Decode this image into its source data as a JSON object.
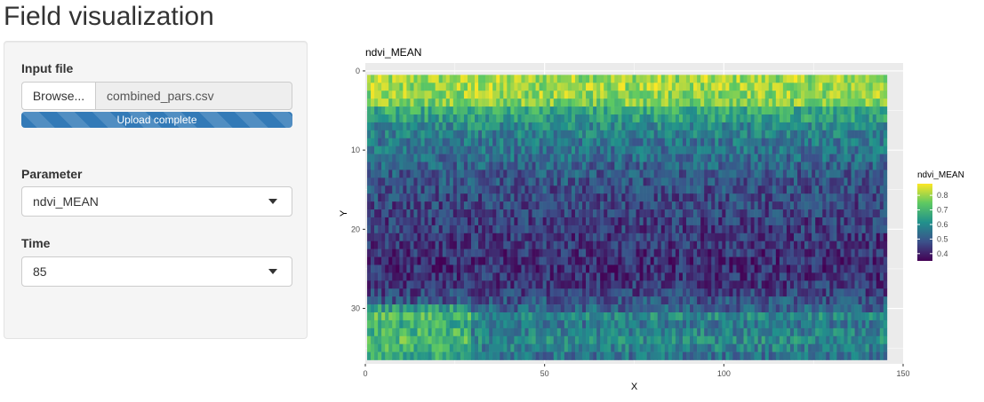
{
  "page": {
    "title": "Field visualization"
  },
  "sidebar": {
    "input_file": {
      "label": "Input file",
      "browse_label": "Browse...",
      "file_name": "combined_pars.csv",
      "progress_text": "Upload complete",
      "progress": 1.0
    },
    "parameter": {
      "label": "Parameter",
      "selected": "ndvi_MEAN"
    },
    "time": {
      "label": "Time",
      "selected": "85"
    }
  },
  "colors": {
    "progress_bar": "#337ab7",
    "panel_bg": "#ebebeb",
    "viridis_low": "#440154",
    "viridis_high": "#fde725"
  },
  "chart_data": {
    "type": "heatmap",
    "title": "ndvi_MEAN",
    "xlabel": "X",
    "ylabel": "Y",
    "x_range": [
      1,
      145
    ],
    "y_range": [
      1,
      36
    ],
    "xlim": [
      0,
      150
    ],
    "ylim": [
      37,
      -1
    ],
    "y_reversed": true,
    "x_ticks": [
      "0",
      "50",
      "100",
      "150"
    ],
    "y_ticks": [
      "0",
      "10",
      "20",
      "30"
    ],
    "grid": true,
    "colorscale": "viridis",
    "legend": {
      "title": "ndvi_MEAN",
      "position": "right",
      "range": [
        0.35,
        0.88
      ],
      "ticks": [
        "0.4",
        "0.5",
        "0.6",
        "0.7",
        "0.8"
      ]
    },
    "row_mean_values": [
      0.8,
      0.8,
      0.79,
      0.77,
      0.67,
      0.65,
      0.6,
      0.58,
      0.56,
      0.55,
      0.54,
      0.52,
      0.5,
      0.49,
      0.48,
      0.47,
      0.46,
      0.46,
      0.45,
      0.45,
      0.44,
      0.44,
      0.43,
      0.42,
      0.42,
      0.43,
      0.44,
      0.46,
      0.49,
      0.52,
      0.6,
      0.56,
      0.58,
      0.6,
      0.58,
      0.55
    ]
  }
}
